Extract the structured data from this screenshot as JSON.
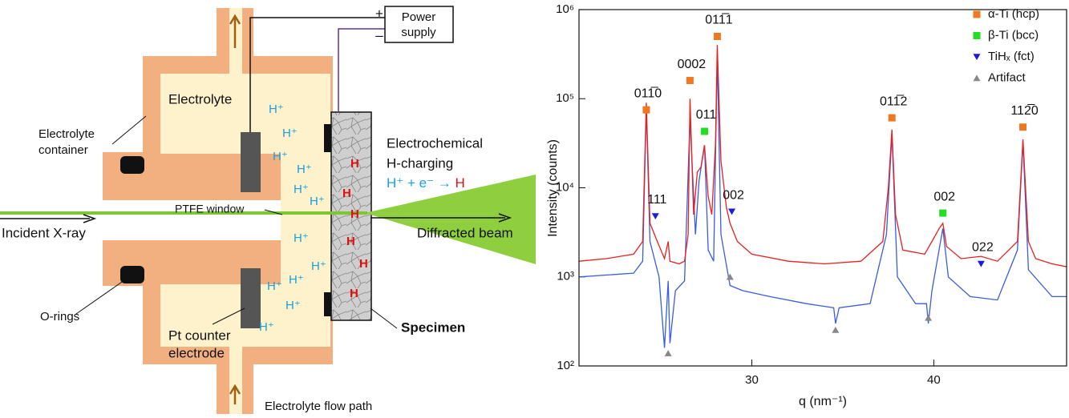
{
  "diagram": {
    "power_supply": [
      "Power",
      "supply"
    ],
    "plus": "+",
    "minus": "–",
    "electrolyte_container": [
      "Electrolyte",
      "container"
    ],
    "electrolyte": "Electrolyte",
    "h_plus": [
      "H⁺",
      "H⁺",
      "H⁺",
      "H⁺",
      "H⁺",
      "H⁺",
      "H⁺",
      "H⁺",
      "H⁺",
      "H⁺",
      "H⁺",
      "H⁺"
    ],
    "h_atoms": [
      "H",
      "H",
      "H",
      "H",
      "H",
      "H"
    ],
    "charging": [
      "Electrochemical",
      "H-charging"
    ],
    "equation": {
      "left": "H⁺ + e⁻ →",
      "right": "H"
    },
    "ptfe_window": "PTFE window",
    "incident": "Incident X-ray",
    "diffracted": "Diffracted beam",
    "o_rings": "O-rings",
    "counter_electrode": [
      "Pt counter",
      "electrode"
    ],
    "specimen": "Specimen",
    "flow_path": "Electrolyte flow path"
  },
  "chart_data": {
    "type": "line",
    "xlabel": "q (nm⁻¹)",
    "ylabel": "Intensity (counts)",
    "xlim": [
      20.5,
      47.3
    ],
    "xticks": [
      30,
      40
    ],
    "ylim": [
      100,
      1000000
    ],
    "yticks": [
      {
        "value": 100,
        "label": "10²"
      },
      {
        "value": 1000,
        "label": "10³"
      },
      {
        "value": 10000,
        "label": "10⁴"
      },
      {
        "value": 100000,
        "label": "10⁵"
      },
      {
        "value": 1000000,
        "label": "10⁶"
      }
    ],
    "log_y": true,
    "legend": "top-right",
    "series": [
      {
        "type": "line",
        "color": "#3a5ce0",
        "x": [
          20.5,
          23.5,
          24.0,
          24.2,
          24.4,
          24.9,
          25.2,
          25.4,
          25.5,
          25.8,
          26.3,
          26.6,
          26.9,
          27.1,
          27.4,
          27.6,
          27.9,
          28.1,
          28.3,
          28.8,
          29.5,
          31,
          33,
          34.5,
          34.6,
          34.8,
          36.5,
          37.4,
          37.7,
          38.0,
          39.0,
          39.6,
          39.7,
          39.9,
          40.5,
          40.8,
          42.0,
          43.5,
          44.6,
          44.9,
          45.2,
          46.5,
          47.3
        ],
        "values": [
          1000,
          1100,
          1500,
          80000,
          2500,
          1000,
          160,
          900,
          180,
          700,
          900,
          60000,
          3000,
          12000,
          30000,
          2000,
          1500,
          300000,
          3000,
          800,
          700,
          600,
          500,
          450,
          300,
          450,
          500,
          3000,
          40000,
          1000,
          500,
          500,
          300,
          700,
          3500,
          1000,
          600,
          550,
          2000,
          33000,
          1200,
          600,
          600
        ]
      },
      {
        "type": "line",
        "color": "#e82020",
        "x": [
          20.5,
          22,
          23.5,
          24.0,
          24.2,
          24.4,
          24.8,
          25.2,
          25.4,
          25.5,
          26.0,
          26.3,
          26.5,
          26.6,
          26.8,
          27.0,
          27.2,
          27.4,
          27.6,
          27.8,
          28.0,
          28.1,
          28.3,
          28.6,
          28.8,
          29.2,
          30,
          32,
          34,
          36,
          37.2,
          37.5,
          37.7,
          37.9,
          38.3,
          39.5,
          39.9,
          40.3,
          40.5,
          40.7,
          41.5,
          42.6,
          43.5,
          44.6,
          44.9,
          45.2,
          45.6,
          46.5,
          47.3
        ],
        "values": [
          1500,
          1600,
          1800,
          2500,
          90000,
          4000,
          2500,
          1600,
          2500,
          1500,
          1400,
          1500,
          3000,
          100000,
          5000,
          15000,
          17000,
          30000,
          8000,
          5000,
          30000,
          400000,
          20000,
          6000,
          4000,
          2500,
          1800,
          1500,
          1400,
          1500,
          2500,
          10000,
          45000,
          5000,
          2000,
          1800,
          2500,
          3500,
          4000,
          2200,
          1600,
          1700,
          1500,
          2500,
          35000,
          2500,
          1600,
          1400,
          1300
        ]
      },
      {
        "type": "scatter",
        "name": "α-Ti (hcp)",
        "color": "#f07820",
        "marker": "square",
        "x": [
          24.2,
          26.6,
          28.1,
          37.7,
          44.9
        ],
        "values": [
          75000,
          160000,
          500000,
          61000,
          48000
        ],
        "point_labels": [
          "011̅0",
          "0002",
          "011̅1",
          "011̅2",
          "112̅0"
        ]
      },
      {
        "type": "scatter",
        "name": "β-Ti (bcc)",
        "color": "#22dd22",
        "marker": "square",
        "x": [
          27.4,
          40.5
        ],
        "values": [
          43000,
          5200
        ],
        "point_labels": [
          "011",
          "002"
        ]
      },
      {
        "type": "scatter",
        "name": "TiHₓ (fct)",
        "color": "#1a1ae0",
        "marker": "triangle",
        "x": [
          24.7,
          28.9,
          42.6
        ],
        "values": [
          4800,
          5400,
          1400
        ],
        "point_labels": [
          "111",
          "002",
          "022"
        ]
      },
      {
        "type": "scatter",
        "name": "Artifact",
        "color": "#888888",
        "marker": "triangle-up",
        "x": [
          25.4,
          28.8,
          34.6,
          39.7
        ],
        "values": [
          139,
          1000,
          254,
          347
        ]
      }
    ]
  }
}
